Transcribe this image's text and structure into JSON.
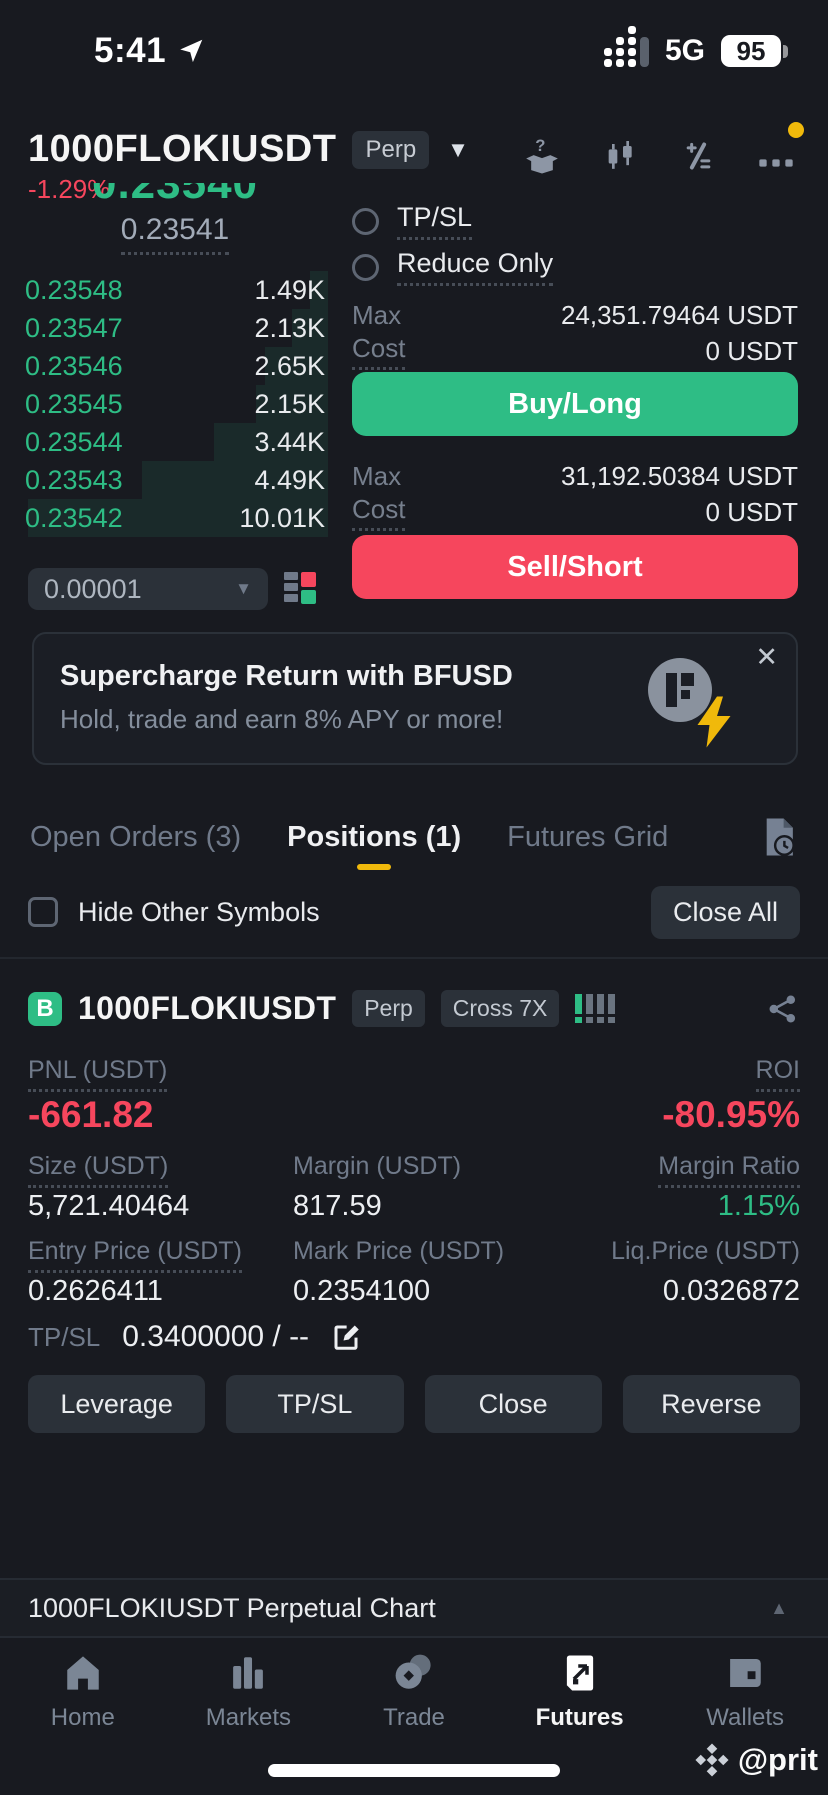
{
  "colors": {
    "green": "#2EBD85",
    "red": "#F6465D",
    "yellow": "#F0B90B",
    "background": "#181A20"
  },
  "status_bar": {
    "time": "5:41",
    "network": "5G",
    "battery": "95"
  },
  "header": {
    "symbol": "1000FLOKIUSDT",
    "contract_type": "Perp",
    "change": "-1.29%",
    "icons": [
      "guide-box-icon",
      "candlestick-chart-icon",
      "calculator-icon",
      "more-icon"
    ]
  },
  "order_book": {
    "last_price": "0.23540",
    "mark_price": "0.23541",
    "rows": [
      {
        "price": "0.23548",
        "size": "1.49K",
        "depth": 6
      },
      {
        "price": "0.23547",
        "size": "2.13K",
        "depth": 12
      },
      {
        "price": "0.23546",
        "size": "2.65K",
        "depth": 21
      },
      {
        "price": "0.23545",
        "size": "2.15K",
        "depth": 24
      },
      {
        "price": "0.23544",
        "size": "3.44K",
        "depth": 38
      },
      {
        "price": "0.23543",
        "size": "4.49K",
        "depth": 62
      },
      {
        "price": "0.23542",
        "size": "10.01K",
        "depth": 100
      }
    ],
    "tick_size": "0.00001"
  },
  "trade_form": {
    "tp_sl_label": "TP/SL",
    "reduce_only_label": "Reduce Only",
    "max_label": "Max",
    "cost_label": "Cost",
    "buy_max_value": "24,351.79464 USDT",
    "buy_cost_value": "0 USDT",
    "buy_button": "Buy/Long",
    "sell_max_value": "31,192.50384 USDT",
    "sell_cost_value": "0 USDT",
    "sell_button": "Sell/Short"
  },
  "banner": {
    "title": "Supercharge Return with BFUSD",
    "subtitle": "Hold, trade and earn 8% APY or more!",
    "close": "✕"
  },
  "tabs": {
    "open_orders": "Open Orders (3)",
    "positions": "Positions (1)",
    "futures_grid": "Futures Grid"
  },
  "positions_toolbar": {
    "hide_other_symbols": "Hide Other Symbols",
    "close_all": "Close All"
  },
  "position": {
    "badge": "B",
    "symbol": "1000FLOKIUSDT",
    "contract_type": "Perp",
    "margin_mode": "Cross 7X",
    "pnl_label": "PNL (USDT)",
    "pnl_value": "-661.82",
    "roi_label": "ROI",
    "roi_value": "-80.95%",
    "size_label": "Size (USDT)",
    "size_value": "5,721.40464",
    "margin_label": "Margin (USDT)",
    "margin_value": "817.59",
    "margin_ratio_label": "Margin Ratio",
    "margin_ratio_value": "1.15%",
    "entry_label": "Entry Price (USDT)",
    "entry_value": "0.2626411",
    "mark_label": "Mark Price (USDT)",
    "mark_value": "0.2354100",
    "liq_label": "Liq.Price (USDT)",
    "liq_value": "0.0326872",
    "tpsl_label": "TP/SL",
    "tpsl_value": "0.3400000 / --",
    "actions": [
      {
        "label": "Leverage"
      },
      {
        "label": "TP/SL"
      },
      {
        "label": "Close"
      },
      {
        "label": "Reverse"
      }
    ]
  },
  "chart_bar": {
    "label": "1000FLOKIUSDT Perpetual  Chart"
  },
  "nav": [
    {
      "label": "Home"
    },
    {
      "label": "Markets"
    },
    {
      "label": "Trade"
    },
    {
      "label": "Futures"
    },
    {
      "label": "Wallets"
    }
  ],
  "watermark": "@prit"
}
